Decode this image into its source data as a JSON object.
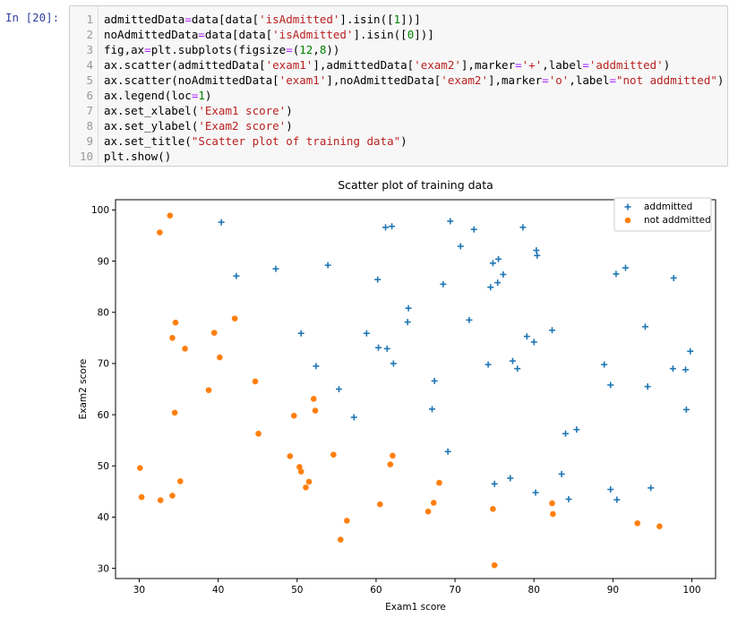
{
  "prompt": "In  [20]:",
  "code_lines": [
    {
      "n": "1",
      "tokens": [
        [
          "t",
          "admittedData"
        ],
        [
          "o",
          "="
        ],
        [
          "t",
          "data[data["
        ],
        [
          "s",
          "'isAdmitted'"
        ],
        [
          "t",
          "].isin(["
        ],
        [
          "n",
          "1"
        ],
        [
          "t",
          "])]"
        ]
      ]
    },
    {
      "n": "2",
      "tokens": [
        [
          "t",
          "noAdmittedData"
        ],
        [
          "o",
          "="
        ],
        [
          "t",
          "data[data["
        ],
        [
          "s",
          "'isAdmitted'"
        ],
        [
          "t",
          "].isin(["
        ],
        [
          "n",
          "0"
        ],
        [
          "t",
          "])]"
        ]
      ]
    },
    {
      "n": "3",
      "tokens": [
        [
          "t",
          "fig,ax"
        ],
        [
          "o",
          "="
        ],
        [
          "t",
          "plt.subplots(figsize"
        ],
        [
          "o",
          "="
        ],
        [
          "t",
          "("
        ],
        [
          "n",
          "12"
        ],
        [
          "t",
          ","
        ],
        [
          "n",
          "8"
        ],
        [
          "t",
          "))"
        ]
      ]
    },
    {
      "n": "4",
      "tokens": [
        [
          "t",
          "ax.scatter(admittedData["
        ],
        [
          "s",
          "'exam1'"
        ],
        [
          "t",
          "],admittedData["
        ],
        [
          "s",
          "'exam2'"
        ],
        [
          "t",
          "],marker"
        ],
        [
          "o",
          "="
        ],
        [
          "s",
          "'+'"
        ],
        [
          "t",
          ",label"
        ],
        [
          "o",
          "="
        ],
        [
          "s",
          "'addmitted'"
        ],
        [
          "t",
          ")"
        ]
      ]
    },
    {
      "n": "5",
      "tokens": [
        [
          "t",
          "ax.scatter(noAdmittedData["
        ],
        [
          "s",
          "'exam1'"
        ],
        [
          "t",
          "],noAdmittedData["
        ],
        [
          "s",
          "'exam2'"
        ],
        [
          "t",
          "],marker"
        ],
        [
          "o",
          "="
        ],
        [
          "s",
          "'o'"
        ],
        [
          "t",
          ",label"
        ],
        [
          "o",
          "="
        ],
        [
          "s",
          "\"not addmitted\""
        ],
        [
          "t",
          ")"
        ]
      ]
    },
    {
      "n": "6",
      "tokens": [
        [
          "t",
          "ax.legend(loc"
        ],
        [
          "o",
          "="
        ],
        [
          "n",
          "1"
        ],
        [
          "t",
          ")"
        ]
      ]
    },
    {
      "n": "7",
      "tokens": [
        [
          "t",
          "ax.set_xlabel("
        ],
        [
          "s",
          "'Exam1 score'"
        ],
        [
          "t",
          ")"
        ]
      ]
    },
    {
      "n": "8",
      "tokens": [
        [
          "t",
          "ax.set_ylabel("
        ],
        [
          "s",
          "'Exam2 score'"
        ],
        [
          "t",
          ")"
        ]
      ]
    },
    {
      "n": "9",
      "tokens": [
        [
          "t",
          "ax.set_title("
        ],
        [
          "s",
          "\"Scatter plot of training data\""
        ],
        [
          "t",
          ")"
        ]
      ]
    },
    {
      "n": "10",
      "tokens": [
        [
          "t",
          "plt.show()"
        ]
      ]
    }
  ],
  "colors": {
    "admitted": "#1f77b4",
    "not_admitted": "#ff7f0e"
  },
  "chart_data": {
    "type": "scatter",
    "title": "Scatter plot of training data",
    "xlabel": "Exam1 score",
    "ylabel": "Exam2 score",
    "xlim": [
      27,
      103
    ],
    "ylim": [
      28,
      102
    ],
    "xticks": [
      30,
      40,
      50,
      60,
      70,
      80,
      90,
      100
    ],
    "yticks": [
      30,
      40,
      50,
      60,
      70,
      80,
      90,
      100
    ],
    "grid": false,
    "legend_position": "top-right",
    "series": [
      {
        "name": "addmitted",
        "marker": "+",
        "color": "#1f77b4",
        "points": [
          [
            40.4,
            97.6
          ],
          [
            42.3,
            87.1
          ],
          [
            47.3,
            88.5
          ],
          [
            50.5,
            75.9
          ],
          [
            52.4,
            69.5
          ],
          [
            53.9,
            89.2
          ],
          [
            55.3,
            65.0
          ],
          [
            57.2,
            59.5
          ],
          [
            58.8,
            75.9
          ],
          [
            60.2,
            86.4
          ],
          [
            60.3,
            73.1
          ],
          [
            61.2,
            96.6
          ],
          [
            61.4,
            72.9
          ],
          [
            62.0,
            96.8
          ],
          [
            62.2,
            70.0
          ],
          [
            64.0,
            78.1
          ],
          [
            64.1,
            80.8
          ],
          [
            67.1,
            61.1
          ],
          [
            67.4,
            66.6
          ],
          [
            68.5,
            85.5
          ],
          [
            69.1,
            52.8
          ],
          [
            69.4,
            97.8
          ],
          [
            70.7,
            92.9
          ],
          [
            71.8,
            78.5
          ],
          [
            72.4,
            96.2
          ],
          [
            74.2,
            69.8
          ],
          [
            74.5,
            84.9
          ],
          [
            74.8,
            89.6
          ],
          [
            75.0,
            46.5
          ],
          [
            75.4,
            85.8
          ],
          [
            75.5,
            90.4
          ],
          [
            76.1,
            87.4
          ],
          [
            77.0,
            47.6
          ],
          [
            77.3,
            70.5
          ],
          [
            77.9,
            69.0
          ],
          [
            78.6,
            96.6
          ],
          [
            79.1,
            75.3
          ],
          [
            80.0,
            74.2
          ],
          [
            80.2,
            44.8
          ],
          [
            80.3,
            92.1
          ],
          [
            80.4,
            91.1
          ],
          [
            82.3,
            76.5
          ],
          [
            83.5,
            48.4
          ],
          [
            84.0,
            56.3
          ],
          [
            84.4,
            43.5
          ],
          [
            85.4,
            57.1
          ],
          [
            88.9,
            69.8
          ],
          [
            89.7,
            65.8
          ],
          [
            89.7,
            45.4
          ],
          [
            90.4,
            87.5
          ],
          [
            90.5,
            43.4
          ],
          [
            91.6,
            88.7
          ],
          [
            94.1,
            77.2
          ],
          [
            94.4,
            65.5
          ],
          [
            94.8,
            45.7
          ],
          [
            97.6,
            69.0
          ],
          [
            97.7,
            86.7
          ],
          [
            99.2,
            68.8
          ],
          [
            99.3,
            61.0
          ],
          [
            99.8,
            72.4
          ]
        ]
      },
      {
        "name": "not addmitted",
        "marker": "o",
        "color": "#ff7f0e",
        "points": [
          [
            30.1,
            49.6
          ],
          [
            30.3,
            43.9
          ],
          [
            32.6,
            95.6
          ],
          [
            32.7,
            43.3
          ],
          [
            33.9,
            98.9
          ],
          [
            34.2,
            75.0
          ],
          [
            34.2,
            44.2
          ],
          [
            34.5,
            60.4
          ],
          [
            34.6,
            78.0
          ],
          [
            35.2,
            47.0
          ],
          [
            35.8,
            72.9
          ],
          [
            38.8,
            64.8
          ],
          [
            39.5,
            76.0
          ],
          [
            40.2,
            71.2
          ],
          [
            42.1,
            78.8
          ],
          [
            44.7,
            66.5
          ],
          [
            45.1,
            56.3
          ],
          [
            49.1,
            51.9
          ],
          [
            49.6,
            59.8
          ],
          [
            50.3,
            49.8
          ],
          [
            50.5,
            48.9
          ],
          [
            51.1,
            45.8
          ],
          [
            51.5,
            46.9
          ],
          [
            52.1,
            63.1
          ],
          [
            52.3,
            60.8
          ],
          [
            54.6,
            52.2
          ],
          [
            55.5,
            35.6
          ],
          [
            56.3,
            39.3
          ],
          [
            60.5,
            42.5
          ],
          [
            61.8,
            50.3
          ],
          [
            62.1,
            52.0
          ],
          [
            66.6,
            41.1
          ],
          [
            67.3,
            42.8
          ],
          [
            68.0,
            46.7
          ],
          [
            74.8,
            41.6
          ],
          [
            75.0,
            30.6
          ],
          [
            82.3,
            42.7
          ],
          [
            82.4,
            40.6
          ],
          [
            93.1,
            38.8
          ],
          [
            95.9,
            38.2
          ]
        ]
      }
    ]
  }
}
